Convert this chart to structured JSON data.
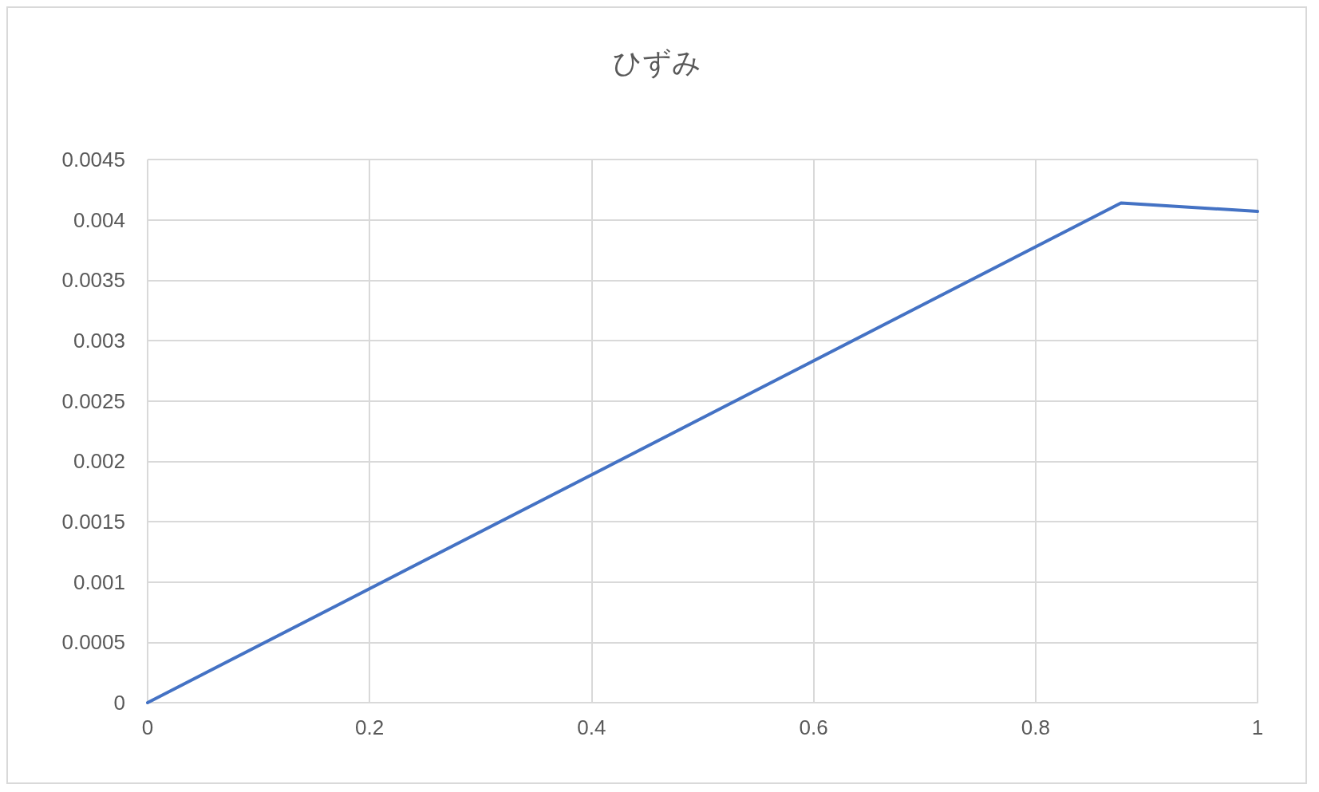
{
  "chart_data": {
    "type": "line",
    "title": "ひずみ",
    "x": [
      0,
      0.877,
      1
    ],
    "values": [
      0,
      0.00414,
      0.00407
    ],
    "color": "#4472c4",
    "xlim": [
      0,
      1
    ],
    "xticks": [
      0,
      0.2,
      0.4,
      0.6,
      0.8,
      1
    ],
    "ylim": [
      0,
      0.0045
    ],
    "yticks": [
      0,
      0.0005,
      0.001,
      0.0015,
      0.002,
      0.0025,
      0.003,
      0.0035,
      0.004,
      0.0045
    ],
    "grid": true,
    "marker": "none",
    "line_style": "solid"
  }
}
